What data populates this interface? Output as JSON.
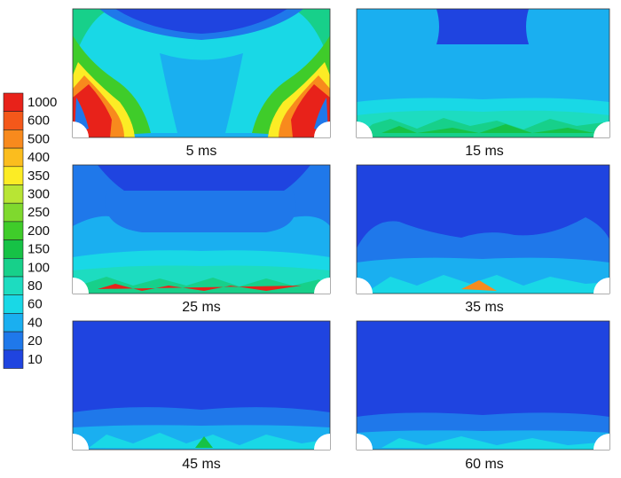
{
  "legend": {
    "levels": [
      {
        "label": "1000",
        "color": "#e8221a"
      },
      {
        "label": "600",
        "color": "#f4581a"
      },
      {
        "label": "500",
        "color": "#f88a1d"
      },
      {
        "label": "400",
        "color": "#fbbd1e"
      },
      {
        "label": "350",
        "color": "#fcec25"
      },
      {
        "label": "300",
        "color": "#b8e534"
      },
      {
        "label": "250",
        "color": "#7fd92e"
      },
      {
        "label": "200",
        "color": "#3fcc2a"
      },
      {
        "label": "150",
        "color": "#16c246"
      },
      {
        "label": "100",
        "color": "#17d08a"
      },
      {
        "label": "80",
        "color": "#1ddcc0"
      },
      {
        "label": "60",
        "color": "#19d8e6"
      },
      {
        "label": "40",
        "color": "#1aaff0"
      },
      {
        "label": "20",
        "color": "#1f78ea"
      },
      {
        "label": "10",
        "color": "#1f44e0"
      }
    ]
  },
  "panels": [
    {
      "caption": "5 ms"
    },
    {
      "caption": "15 ms"
    },
    {
      "caption": "25 ms"
    },
    {
      "caption": "35 ms"
    },
    {
      "caption": "45 ms"
    },
    {
      "caption": "60 ms"
    }
  ]
}
